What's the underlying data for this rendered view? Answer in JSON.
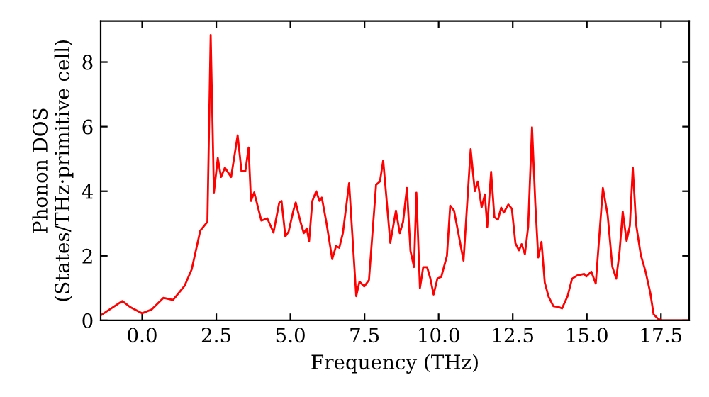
{
  "chart_data": {
    "type": "line",
    "xlabel": "Frequency (THz)",
    "ylabel": "Phonon DOS\n(States/THz·primitive cell)",
    "xlim": [
      -1.4,
      18.45
    ],
    "ylim": [
      0,
      9.27
    ],
    "xticks": [
      {
        "value": 0,
        "label": "0.0"
      },
      {
        "value": 2.5,
        "label": "2.5"
      },
      {
        "value": 5,
        "label": "5.0"
      },
      {
        "value": 7.5,
        "label": "7.5"
      },
      {
        "value": 10,
        "label": "10.0"
      },
      {
        "value": 12.5,
        "label": "12.5"
      },
      {
        "value": 15,
        "label": "15.0"
      },
      {
        "value": 17.5,
        "label": "17.5"
      }
    ],
    "yticks": [
      0,
      2,
      4,
      6,
      8
    ],
    "grid": false,
    "marker": "none",
    "line_style": "solid",
    "series": [
      {
        "color": "#ff0000",
        "x": [
          -1.39,
          -0.67,
          -0.4,
          0,
          0.32,
          0.72,
          1.04,
          1.43,
          1.67,
          1.96,
          2.2,
          2.31,
          2.42,
          2.55,
          2.66,
          2.79,
          3.0,
          3.22,
          3.35,
          3.48,
          3.59,
          3.67,
          3.78,
          4.02,
          4.22,
          4.43,
          4.62,
          4.7,
          4.83,
          4.94,
          5.1,
          5.18,
          5.34,
          5.45,
          5.55,
          5.63,
          5.74,
          5.87,
          5.98,
          6.06,
          6.22,
          6.41,
          6.54,
          6.65,
          6.77,
          6.98,
          7.22,
          7.33,
          7.49,
          7.65,
          7.89,
          8.02,
          8.13,
          8.37,
          8.56,
          8.69,
          8.8,
          8.93,
          9.05,
          9.17,
          9.25,
          9.37,
          9.48,
          9.61,
          9.72,
          9.83,
          9.96,
          10.09,
          10.28,
          10.39,
          10.52,
          10.84,
          11.08,
          11.22,
          11.32,
          11.45,
          11.56,
          11.64,
          11.77,
          11.88,
          12.0,
          12.11,
          12.2,
          12.35,
          12.47,
          12.59,
          12.71,
          12.8,
          12.91,
          13.02,
          13.15,
          13.26,
          13.36,
          13.47,
          13.58,
          13.71,
          13.87,
          14.06,
          14.16,
          14.35,
          14.5,
          14.67,
          14.91,
          14.98,
          15.15,
          15.3,
          15.54,
          15.7,
          15.86,
          15.99,
          16.1,
          16.21,
          16.34,
          16.45,
          16.55,
          16.66,
          16.82,
          16.98,
          17.14,
          17.25,
          17.41,
          17.53,
          18.41
        ],
        "values": [
          0.16,
          0.6,
          0.41,
          0.22,
          0.34,
          0.7,
          0.63,
          1.07,
          1.58,
          2.78,
          3.05,
          8.84,
          3.96,
          5.03,
          4.44,
          4.73,
          4.44,
          5.73,
          4.62,
          4.62,
          5.35,
          3.7,
          3.96,
          3.09,
          3.16,
          2.72,
          3.63,
          3.7,
          2.6,
          2.75,
          3.4,
          3.65,
          3.05,
          2.7,
          2.85,
          2.45,
          3.7,
          4.0,
          3.7,
          3.8,
          3.0,
          1.9,
          2.3,
          2.25,
          2.7,
          4.25,
          0.75,
          1.2,
          1.05,
          1.25,
          4.2,
          4.3,
          4.95,
          2.4,
          3.4,
          2.7,
          3.05,
          4.1,
          2.15,
          1.65,
          3.95,
          1.0,
          1.65,
          1.65,
          1.3,
          0.8,
          1.3,
          1.35,
          2.0,
          3.55,
          3.4,
          1.85,
          5.3,
          4.0,
          4.3,
          3.5,
          3.9,
          2.9,
          4.6,
          3.2,
          3.12,
          3.49,
          3.34,
          3.59,
          3.46,
          2.39,
          2.17,
          2.36,
          2.05,
          2.9,
          5.98,
          3.63,
          1.95,
          2.43,
          1.17,
          0.73,
          0.44,
          0.41,
          0.37,
          0.75,
          1.29,
          1.39,
          1.44,
          1.36,
          1.51,
          1.14,
          4.1,
          3.27,
          1.66,
          1.29,
          2.1,
          3.37,
          2.46,
          2.93,
          4.73,
          2.98,
          2.02,
          1.51,
          0.85,
          0.19,
          0.04,
          0,
          0
        ]
      }
    ]
  }
}
